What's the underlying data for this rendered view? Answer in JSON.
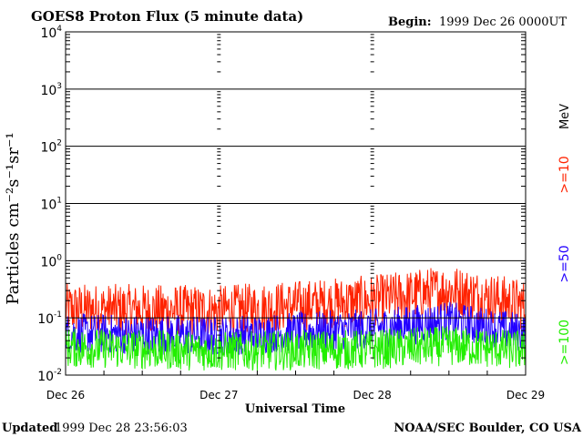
{
  "header": {
    "title": "GOES8 Proton Flux (5 minute data)",
    "begin_label": "Begin:",
    "begin_value": "1999 Dec 26 0000UT"
  },
  "footer": {
    "updated_label": "Updated",
    "updated_value": "1999 Dec 28 23:56:03",
    "source": "NOAA/SEC Boulder, CO USA"
  },
  "chart_data": {
    "type": "line",
    "title": "GOES8 Proton Flux (5 minute data)",
    "xlabel": "Universal Time",
    "ylabel": "Particles cm⁻²s⁻¹sr⁻¹",
    "yscale": "log",
    "ylim": [
      0.01,
      10000
    ],
    "xlim_days": [
      0,
      3
    ],
    "x_ticks": [
      "Dec 26",
      "Dec 27",
      "Dec 28",
      "Dec 29"
    ],
    "y_ticks": [
      {
        "base": "10",
        "exp": "-2"
      },
      {
        "base": "10",
        "exp": "-1"
      },
      {
        "base": "10",
        "exp": "0"
      },
      {
        "base": "10",
        "exp": "1"
      },
      {
        "base": "10",
        "exp": "2"
      },
      {
        "base": "10",
        "exp": "3"
      },
      {
        "base": "10",
        "exp": "4"
      }
    ],
    "grid": true,
    "legend": {
      "placement": "right",
      "unit": "MeV",
      "entries": [
        {
          "label": ">=10",
          "color": "#ff2200"
        },
        {
          "label": ">=50",
          "color": "#2200ff"
        },
        {
          "label": ">=100",
          "color": "#22ee00"
        }
      ]
    },
    "series": [
      {
        "name": ">=10",
        "color": "#ff2200",
        "typical": 0.13,
        "spread": 0.45,
        "segments": [
          [
            0.0,
            0.13
          ],
          [
            1.0,
            0.12
          ],
          [
            2.0,
            0.18
          ],
          [
            2.5,
            0.28
          ],
          [
            3.0,
            0.15
          ]
        ]
      },
      {
        "name": ">=50",
        "color": "#2200ff",
        "typical": 0.05,
        "spread": 0.35,
        "segments": [
          [
            0.0,
            0.05
          ],
          [
            1.0,
            0.045
          ],
          [
            2.0,
            0.06
          ],
          [
            2.5,
            0.08
          ],
          [
            3.0,
            0.05
          ]
        ]
      },
      {
        "name": ">=100",
        "color": "#22ee00",
        "typical": 0.025,
        "spread": 0.35,
        "segments": [
          [
            0.0,
            0.028
          ],
          [
            1.0,
            0.024
          ],
          [
            2.0,
            0.026
          ],
          [
            2.5,
            0.03
          ],
          [
            3.0,
            0.025
          ]
        ]
      }
    ]
  }
}
